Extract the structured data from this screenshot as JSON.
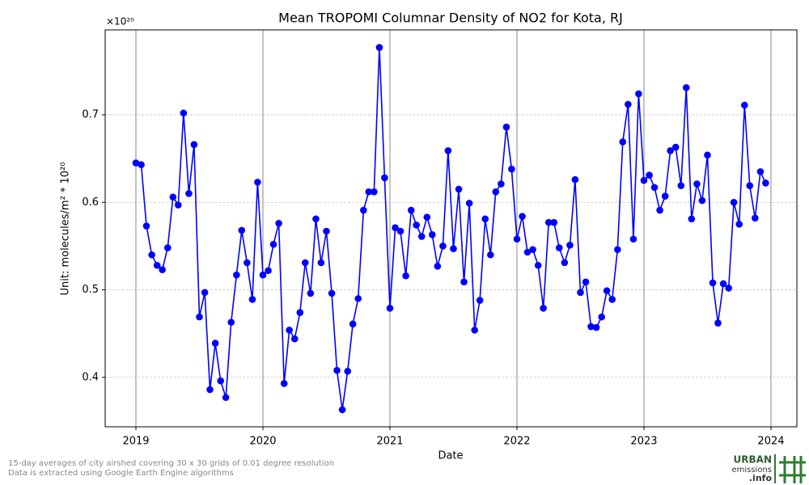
{
  "chart_data": {
    "type": "line",
    "title": "Mean TROPOMI Columnar Density of NO2 for Kota, RJ",
    "x_label": "Date",
    "y_label": "Unit: molecules/m² * 10²⁰",
    "y_offset_label": "×10²⁰",
    "color": "#0000ff",
    "grid": true,
    "xlim": [
      2018.758,
      2024.204
    ],
    "ylim": [
      0.3435,
      0.797
    ],
    "xticks": [
      2019,
      2020,
      2021,
      2022,
      2023,
      2024
    ],
    "yticks": [
      0.4,
      0.5,
      0.6,
      0.7
    ],
    "x": [
      2019,
      2019.042,
      2019.083,
      2019.125,
      2019.167,
      2019.208,
      2019.25,
      2019.292,
      2019.333,
      2019.375,
      2019.417,
      2019.458,
      2019.5,
      2019.542,
      2019.583,
      2019.625,
      2019.667,
      2019.708,
      2019.75,
      2019.792,
      2019.833,
      2019.875,
      2019.917,
      2019.958,
      2020,
      2020.042,
      2020.083,
      2020.125,
      2020.167,
      2020.208,
      2020.25,
      2020.292,
      2020.333,
      2020.375,
      2020.417,
      2020.458,
      2020.5,
      2020.542,
      2020.583,
      2020.625,
      2020.667,
      2020.708,
      2020.75,
      2020.792,
      2020.833,
      2020.875,
      2020.917,
      2020.958,
      2021,
      2021.042,
      2021.083,
      2021.125,
      2021.167,
      2021.208,
      2021.25,
      2021.292,
      2021.333,
      2021.375,
      2021.417,
      2021.458,
      2021.5,
      2021.542,
      2021.583,
      2021.625,
      2021.667,
      2021.708,
      2021.75,
      2021.792,
      2021.833,
      2021.875,
      2021.917,
      2021.958,
      2022,
      2022.042,
      2022.083,
      2022.125,
      2022.167,
      2022.208,
      2022.25,
      2022.292,
      2022.333,
      2022.375,
      2022.417,
      2022.458,
      2022.5,
      2022.542,
      2022.583,
      2022.625,
      2022.667,
      2022.708,
      2022.75,
      2022.792,
      2022.833,
      2022.875,
      2022.917,
      2022.958,
      2023,
      2023.042,
      2023.083,
      2023.125,
      2023.167,
      2023.208,
      2023.25,
      2023.292,
      2023.333,
      2023.375,
      2023.417,
      2023.458,
      2023.5,
      2023.542,
      2023.583,
      2023.625,
      2023.667,
      2023.708,
      2023.75,
      2023.792,
      2023.833,
      2023.875,
      2023.917,
      2023.958
    ],
    "values": [
      0.645,
      0.643,
      0.573,
      0.54,
      0.528,
      0.523,
      0.548,
      0.606,
      0.597,
      0.702,
      0.61,
      0.666,
      0.469,
      0.497,
      0.386,
      0.439,
      0.396,
      0.377,
      0.463,
      0.517,
      0.568,
      0.531,
      0.489,
      0.623,
      0.517,
      0.522,
      0.552,
      0.576,
      0.393,
      0.454,
      0.444,
      0.474,
      0.531,
      0.496,
      0.581,
      0.531,
      0.567,
      0.496,
      0.408,
      0.363,
      0.407,
      0.461,
      0.49,
      0.591,
      0.612,
      0.612,
      0.777,
      0.628,
      0.479,
      0.571,
      0.567,
      0.516,
      0.591,
      0.574,
      0.561,
      0.583,
      0.563,
      0.527,
      0.55,
      0.659,
      0.547,
      0.615,
      0.509,
      0.599,
      0.454,
      0.488,
      0.581,
      0.54,
      0.612,
      0.621,
      0.686,
      0.638,
      0.558,
      0.584,
      0.543,
      0.546,
      0.528,
      0.479,
      0.577,
      0.577,
      0.548,
      0.531,
      0.551,
      0.626,
      0.497,
      0.509,
      0.458,
      0.457,
      0.469,
      0.499,
      0.489,
      0.546,
      0.669,
      0.712,
      0.558,
      0.724,
      0.625,
      0.631,
      0.617,
      0.591,
      0.607,
      0.659,
      0.663,
      0.619,
      0.731,
      0.581,
      0.621,
      0.602,
      0.654,
      0.508,
      0.462,
      0.507,
      0.502,
      0.6,
      0.575,
      0.711,
      0.619,
      0.582,
      0.635,
      0.622
    ]
  },
  "footer": [
    "15-day averages of city airshed covering 30 x 30 grids of 0.01 degree resolution",
    "Data is extracted using Google Earth Engine algorithms"
  ],
  "logo": [
    "URBAN",
    "emissions",
    ".info"
  ]
}
